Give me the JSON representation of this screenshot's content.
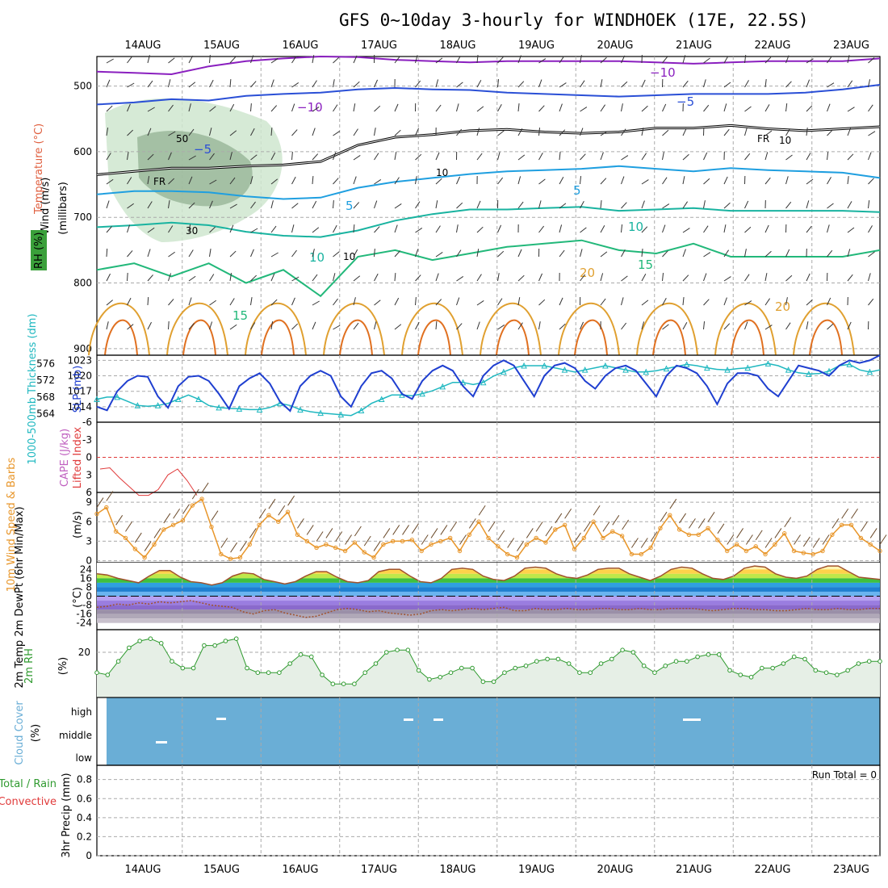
{
  "title": "GFS 0~10day 3-hourly for WINDHOEK (17E, 22.5S)",
  "colors": {
    "temp_m10": "#8a1fbf",
    "temp_m5": "#2a4fd6",
    "temp_p5": "#1f9fe0",
    "temp_p10": "#19b3a0",
    "temp_p15": "#22b87a",
    "temp_p20": "#e0a030",
    "temp_p25": "#e07020",
    "temp_p30": "#e0107a",
    "freezing": "#000000",
    "rh_fill": "#cfe6cf",
    "rh_dark": "#8fae8f",
    "slp": "#1f3fd0",
    "thickness": "#20b8c0",
    "lifted": "#e03a3a",
    "cape": "#c060c0",
    "wind10m": "#e8962a",
    "barb": "#6b4a2a",
    "tmax": "#a0522d",
    "dewpt": "#a0522d",
    "rh2m": "#2f9a2f",
    "rh2m_fill": "#e6efe6",
    "cloud": "#6aaed6",
    "precip_total": "#2f9a2f",
    "precip_conv": "#e03a3a"
  },
  "chart_data": [
    {
      "type": "contour",
      "panel": "upper-air",
      "x_dates": [
        "14AUG",
        "15AUG",
        "16AUG",
        "17AUG",
        "18AUG",
        "19AUG",
        "20AUG",
        "21AUG",
        "22AUG",
        "23AUG"
      ],
      "ylabel": "(millibars)",
      "yticks": [
        "500",
        "600",
        "700",
        "800",
        "900"
      ],
      "side_labels": [
        "Wind (m/s)",
        "Temperature (°C)",
        "RH (%)"
      ],
      "temperature_contours": [
        {
          "level": -10,
          "label": "−10",
          "pressure": [
            478,
            480,
            482,
            470,
            462,
            458,
            455,
            456,
            460,
            462,
            464,
            462,
            462,
            462,
            462,
            464,
            466,
            464,
            462,
            462,
            462,
            458
          ]
        },
        {
          "level": -5,
          "label": "−5",
          "pressure": [
            528,
            525,
            520,
            522,
            515,
            512,
            510,
            505,
            503,
            505,
            506,
            510,
            512,
            514,
            516,
            514,
            512,
            512,
            512,
            510,
            505,
            498
          ]
        },
        {
          "level": 0,
          "label": "FR",
          "pressure": [
            635,
            630,
            625,
            625,
            622,
            620,
            615,
            590,
            578,
            574,
            568,
            566,
            570,
            572,
            570,
            564,
            564,
            560,
            565,
            568,
            565,
            562
          ]
        },
        {
          "level": 5,
          "label": "5",
          "pressure": [
            665,
            660,
            660,
            662,
            668,
            672,
            670,
            655,
            646,
            640,
            634,
            630,
            628,
            626,
            622,
            626,
            630,
            625,
            628,
            630,
            632,
            640
          ]
        },
        {
          "level": 10,
          "label": "10",
          "pressure": [
            715,
            712,
            708,
            712,
            722,
            728,
            730,
            720,
            705,
            695,
            688,
            688,
            686,
            684,
            690,
            688,
            686,
            690,
            690,
            690,
            690,
            692
          ]
        },
        {
          "level": 15,
          "label": "15",
          "pressure": [
            780,
            770,
            790,
            770,
            800,
            780,
            820,
            760,
            750,
            765,
            755,
            745,
            740,
            735,
            750,
            755,
            740,
            760,
            760,
            760,
            760,
            750
          ]
        }
      ],
      "contour_labels": {
        "rh": [
          "50",
          "30",
          "10",
          "10",
          "10"
        ],
        "temp20": "20",
        "temp15": "15",
        "temp10": "10",
        "temp5": "5",
        "tempm5": "−5",
        "tempm10": "−10",
        "fr": "FR"
      }
    },
    {
      "type": "line",
      "panel": "slp-thickness",
      "ylabel": "SLP (mb)",
      "ylabel2": "1000-500mb Thickness (dm)",
      "yticks_left": [
        "576",
        "572",
        "568",
        "564"
      ],
      "yticks_right": [
        "1023",
        "1020",
        "1017",
        "1014"
      ],
      "series": [
        {
          "name": "SLP (mb)",
          "unit": "mb",
          "values": [
            1014.0,
            1013.3,
            1017.0,
            1019.0,
            1020.0,
            1019.8,
            1016.0,
            1013.8,
            1018.0,
            1019.8,
            1020.0,
            1019.0,
            1016.5,
            1013.6,
            1018.0,
            1019.5,
            1020.5,
            1018.5,
            1015.0,
            1013.2,
            1018.0,
            1020.0,
            1021.0,
            1020.0,
            1016.0,
            1014.0,
            1018.0,
            1020.5,
            1021.0,
            1019.5,
            1016.5,
            1015.5,
            1019.0,
            1021.0,
            1022.0,
            1021.0,
            1018.0,
            1016.0,
            1020.0,
            1022.0,
            1023.0,
            1022.0,
            1019.0,
            1016.0,
            1020.0,
            1022.0,
            1022.5,
            1021.5,
            1019.0,
            1017.5,
            1020.0,
            1021.5,
            1022.0,
            1021.0,
            1018.5,
            1016.0,
            1020.0,
            1022.0,
            1021.5,
            1020.5,
            1018.0,
            1014.5,
            1018.5,
            1020.5,
            1020.5,
            1020.0,
            1017.5,
            1016.0,
            1019.0,
            1022.0,
            1021.5,
            1021.0,
            1020.0,
            1022.0,
            1023.0,
            1022.5,
            1023.0,
            1024.0
          ]
        },
        {
          "name": "Thickness (dm)",
          "unit": "dm",
          "values": [
            567.5,
            568.0,
            568.0,
            567.0,
            566.0,
            565.8,
            566.0,
            566.5,
            567.5,
            568.5,
            567.5,
            566.0,
            565.5,
            565.3,
            565.2,
            565.0,
            565.0,
            565.5,
            566.5,
            566.0,
            565.0,
            564.5,
            564.2,
            564.0,
            563.8,
            563.6,
            564.8,
            566.5,
            567.5,
            568.5,
            568.5,
            568.3,
            568.8,
            569.5,
            570.5,
            571.5,
            571.5,
            571.0,
            571.5,
            573.0,
            574.0,
            575.0,
            575.5,
            575.5,
            575.5,
            575.0,
            574.5,
            574.0,
            574.5,
            575.0,
            575.5,
            575.0,
            574.5,
            574.0,
            574.0,
            574.3,
            574.8,
            575.3,
            575.8,
            575.5,
            575.0,
            574.6,
            574.5,
            574.8,
            575.0,
            575.5,
            576.0,
            575.5,
            574.5,
            573.8,
            573.5,
            573.6,
            574.2,
            575.5,
            575.8,
            574.5,
            574.0,
            574.5
          ]
        }
      ]
    },
    {
      "type": "line",
      "panel": "lifted-cape",
      "ylabel": "Lifted Index",
      "ylabel2": "CAPE (J/kg)",
      "yticks": [
        "-6",
        "-3",
        "0",
        "3",
        "6"
      ],
      "series": [
        {
          "name": "Lifted Index",
          "values": [
            2.0,
            1.8,
            3.5,
            5.0,
            6.5,
            6.5,
            5.5,
            3.0,
            2.0,
            4.0,
            6.5
          ]
        }
      ]
    },
    {
      "type": "line",
      "panel": "wind10m",
      "ylabel": "10m Wind Speed & Barbs",
      "unit_label": "(m/s)",
      "yticks": [
        "9",
        "6",
        "3",
        "0"
      ],
      "series": [
        {
          "name": "10m Wind Speed",
          "values": [
            7.2,
            8.2,
            4.5,
            3.5,
            1.8,
            0.5,
            2.5,
            4.8,
            5.5,
            6.2,
            8.5,
            9.5,
            5.2,
            1.0,
            0.3,
            0.5,
            2.5,
            5.5,
            7.0,
            6.0,
            7.5,
            4.0,
            3.0,
            2.0,
            2.5,
            2.0,
            1.5,
            2.8,
            1.3,
            0.5,
            2.5,
            3.0,
            3.0,
            3.2,
            1.5,
            2.5,
            3.0,
            3.5,
            1.5,
            4.0,
            6.0,
            3.5,
            2.2,
            1.0,
            0.5,
            2.5,
            3.5,
            2.8,
            4.8,
            5.5,
            1.8,
            3.5,
            6.0,
            3.5,
            4.5,
            3.8,
            1.0,
            1.0,
            2.0,
            5.0,
            7.0,
            4.8,
            4.0,
            4.0,
            5.0,
            3.2,
            1.5,
            2.5,
            1.5,
            2.2,
            1.0,
            2.5,
            4.2,
            1.5,
            1.2,
            1.0,
            1.5,
            4.0,
            5.5,
            5.5,
            3.5,
            2.5,
            1.5
          ]
        }
      ]
    },
    {
      "type": "area",
      "panel": "temp2m",
      "ylabel": "2m Temp 2m DewPt (6hr Min/Max)",
      "unit_label": "(°C)",
      "yticks": [
        "24",
        "16",
        "8",
        "0",
        "-8",
        "-16",
        "-24"
      ],
      "series": [
        {
          "name": "2m Temp",
          "values": [
            20,
            19,
            16,
            14,
            12,
            18,
            23,
            23,
            17,
            13,
            12,
            10,
            12,
            18,
            21,
            20,
            15,
            13,
            11,
            13,
            18,
            22,
            22,
            17,
            13,
            12,
            14,
            22,
            24,
            24,
            18,
            13,
            12,
            16,
            24,
            25,
            24,
            18,
            15,
            14,
            18,
            25,
            26,
            25,
            20,
            17,
            16,
            19,
            24,
            25,
            25,
            20,
            17,
            14,
            18,
            24,
            26,
            25,
            20,
            16,
            15,
            18,
            25,
            27,
            26,
            20,
            17,
            16,
            18,
            24,
            27,
            27,
            22,
            17,
            16,
            15
          ]
        },
        {
          "name": "2m DewPt",
          "values": [
            -10,
            -9,
            -7,
            -8,
            -6,
            -7,
            -5,
            -6,
            -5,
            -4,
            -6,
            -8,
            -9,
            -10,
            -14,
            -16,
            -13,
            -12,
            -15,
            -17,
            -19,
            -18,
            -15,
            -12,
            -11,
            -12,
            -14,
            -13,
            -15,
            -16,
            -17,
            -16,
            -13,
            -12,
            -13,
            -12,
            -11,
            -12,
            -11,
            -10,
            -13,
            -13,
            -11,
            -12,
            -12,
            -11,
            -12,
            -12,
            -11,
            -11,
            -12,
            -12,
            -11,
            -12,
            -12,
            -11,
            -11,
            -11,
            -12,
            -13,
            -12,
            -11,
            -11,
            -12,
            -12,
            -13,
            -13,
            -12,
            -11,
            -12,
            -12,
            -11,
            -12,
            -12,
            -11,
            -11
          ]
        }
      ]
    },
    {
      "type": "line",
      "panel": "rh2m",
      "ylabel": "2m RH",
      "unit_label": "(%)",
      "yticks": [
        "20"
      ],
      "series": [
        {
          "name": "2m RH",
          "values": [
            11,
            10,
            16,
            22,
            25,
            26,
            24,
            16,
            13,
            13,
            23,
            23,
            25,
            26,
            13,
            11,
            11,
            11,
            15,
            19,
            18,
            10,
            6,
            6,
            6,
            11,
            15,
            20,
            21,
            21,
            12,
            8,
            9,
            11,
            13,
            13,
            7,
            7,
            11,
            13,
            14,
            16,
            17,
            17,
            15,
            11,
            11,
            15,
            17,
            21,
            20,
            14,
            11,
            14,
            16,
            16,
            18,
            19,
            19,
            12,
            10,
            9,
            13,
            13,
            15,
            18,
            17,
            12,
            11,
            10,
            12,
            15,
            16,
            16
          ]
        }
      ]
    },
    {
      "type": "heatmap",
      "panel": "cloud",
      "ylabel": "Cloud Cover",
      "unit_label": "(%)",
      "yticks": [
        "high",
        "middle",
        "low"
      ]
    },
    {
      "type": "bar",
      "panel": "precip",
      "ylabel": "3hr Precip (mm)",
      "side_labels": [
        "Total / Rain",
        "Convective"
      ],
      "yticks": [
        "0.8",
        "0.6",
        "0.4",
        "0.2",
        "0"
      ],
      "run_total": "Run Total = 0",
      "values": []
    }
  ]
}
